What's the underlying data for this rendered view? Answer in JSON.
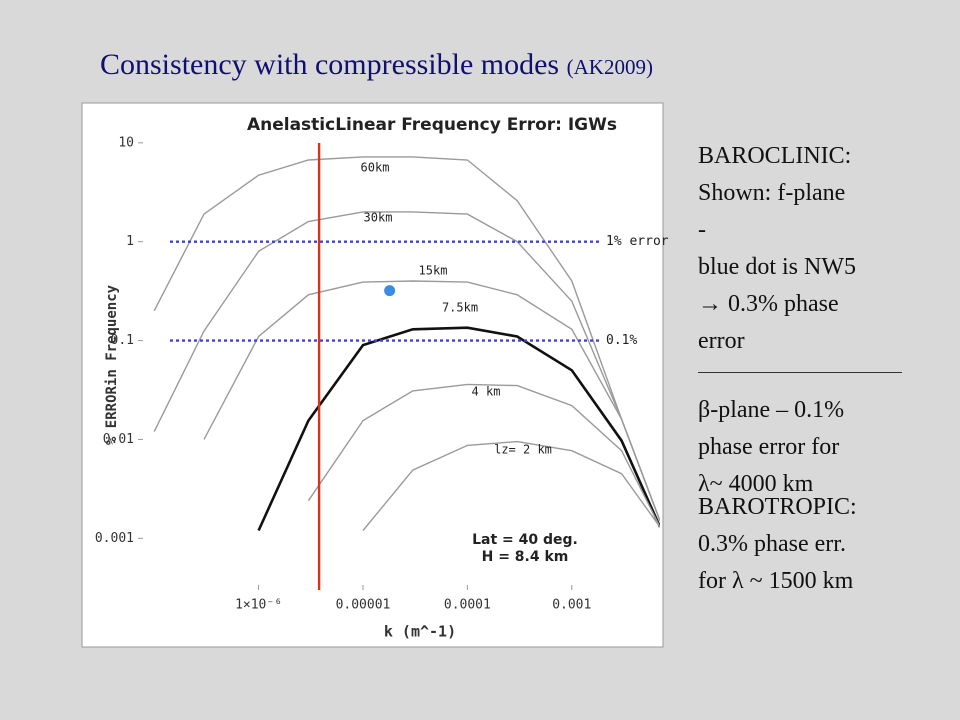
{
  "slide": {
    "title": "Consistency with compressible modes",
    "title_note": "(AK2009)",
    "baroclinic": [
      "BAROCLINIC:",
      "Shown: f-plane",
      "-",
      "blue dot is NW5",
      "→ 0.3% phase",
      "error"
    ],
    "beta": [
      "β-plane – 0.1%",
      "phase error for",
      "λ~ 4000 km"
    ],
    "barotropic": [
      "BAROTROPIC:",
      "0.3% phase err.",
      "for λ ~ 1500 km"
    ]
  },
  "chart_data": {
    "type": "line",
    "title": "AnelasticLinear Frequency Error: IGWs",
    "xlabel": "k (m^-1)",
    "ylabel": "% ERRORin Frequency",
    "xlog": true,
    "ylog": true,
    "xlim": [
      7e-08,
      0.007
    ],
    "ylim": [
      0.0003,
      12
    ],
    "xticks": [
      {
        "value": 1e-06,
        "label": "1×10⁻⁶"
      },
      1e-05,
      0.0001,
      0.001
    ],
    "yticks": [
      10,
      1,
      0.1,
      0.01,
      0.001
    ],
    "x": [
      1e-07,
      3e-07,
      1e-06,
      3e-06,
      1e-05,
      3e-05,
      0.0001,
      0.0003,
      0.001,
      0.003,
      0.007
    ],
    "series": [
      {
        "name": "60km",
        "color": "#9a9a9a",
        "values": [
          0.2,
          1.9,
          4.7,
          6.7,
          7.2,
          7.2,
          6.7,
          2.6,
          0.4,
          0.016,
          0.0015
        ]
      },
      {
        "name": "30km",
        "color": "#9a9a9a",
        "values": [
          0.012,
          0.125,
          0.8,
          1.6,
          2.0,
          2.0,
          1.9,
          1.0,
          0.25,
          0.016,
          0.0015
        ]
      },
      {
        "name": "15km",
        "color": "#9a9a9a",
        "values": [
          null,
          0.01,
          0.11,
          0.29,
          0.39,
          0.4,
          0.39,
          0.29,
          0.13,
          0.016,
          0.0015
        ]
      },
      {
        "name": "7.5km",
        "color": "#111111",
        "values": [
          null,
          null,
          0.0012,
          0.0155,
          0.09,
          0.13,
          0.135,
          0.11,
          0.05,
          0.0097,
          0.0013
        ]
      },
      {
        "name": "4 km",
        "color": "#9a9a9a",
        "values": [
          null,
          null,
          null,
          0.0024,
          0.0155,
          0.031,
          0.036,
          0.035,
          0.022,
          0.0077,
          0.0013
        ]
      },
      {
        "name": "lz= 2 km",
        "color": "#9a9a9a",
        "values": [
          null,
          null,
          null,
          null,
          0.0012,
          0.0049,
          0.0087,
          0.0095,
          0.0077,
          0.0045,
          0.0013
        ]
      }
    ],
    "hlines": [
      {
        "value": 1,
        "label": "1% error"
      },
      {
        "value": 0.1,
        "label": "0.1%"
      }
    ],
    "hline_color": "#4040e0",
    "vline": {
      "value": 3.8e-06,
      "color": "#d8341a"
    },
    "point": {
      "x": 1.8e-05,
      "y": 0.32,
      "color": "#3a8de6"
    },
    "annotations": [
      "Lat = 40 deg.",
      "H = 8.4 km"
    ]
  }
}
